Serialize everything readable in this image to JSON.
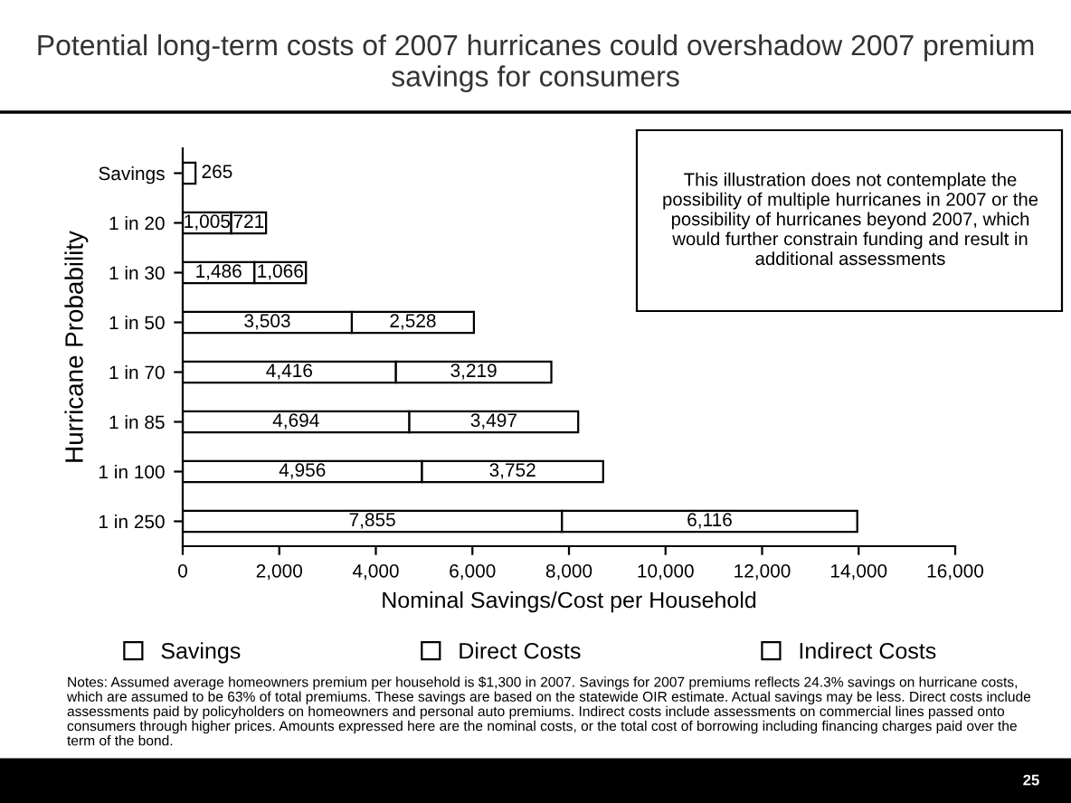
{
  "chart_data": {
    "type": "bar",
    "orientation": "horizontal",
    "stacked": true,
    "title": "Potential long-term costs of 2007 hurricanes could overshadow 2007 premium savings for consumers",
    "xlabel": "Nominal Savings/Cost per Household",
    "ylabel": "Hurricane Probability",
    "categories": [
      "Savings",
      "1 in 20",
      "1 in 30",
      "1 in 50",
      "1 in 70",
      "1 in 85",
      "1 in 100",
      "1 in 250"
    ],
    "series": [
      {
        "name": "Savings",
        "color": "#ffffff",
        "values": [
          265,
          null,
          null,
          null,
          null,
          null,
          null,
          null
        ],
        "value_labels": [
          "265",
          null,
          null,
          null,
          null,
          null,
          null,
          null
        ]
      },
      {
        "name": "Direct Costs",
        "color": "#ffffff",
        "values": [
          null,
          1005,
          1486,
          3503,
          4416,
          4694,
          4956,
          7855
        ],
        "value_labels": [
          null,
          "1,005",
          "1,486",
          "3,503",
          "4,416",
          "4,694",
          "4,956",
          "7,855"
        ]
      },
      {
        "name": "Indirect Costs",
        "color": "#ffffff",
        "values": [
          null,
          721,
          1066,
          2528,
          3219,
          3497,
          3752,
          6116
        ],
        "value_labels": [
          null,
          "721",
          "1,066",
          "2,528",
          "3,219",
          "3,497",
          "3,752",
          "6,116"
        ]
      }
    ],
    "xlim": [
      0,
      16000
    ],
    "xticks": [
      {
        "value": 0,
        "label": "0"
      },
      {
        "value": 2000,
        "label": "2,000"
      },
      {
        "value": 4000,
        "label": "4,000"
      },
      {
        "value": 6000,
        "label": "6,000"
      },
      {
        "value": 8000,
        "label": "8,000"
      },
      {
        "value": 10000,
        "label": "10,000"
      },
      {
        "value": 12000,
        "label": "12,000"
      },
      {
        "value": 14000,
        "label": "14,000"
      },
      {
        "value": 16000,
        "label": "16,000"
      }
    ],
    "legend": "bottom",
    "grid": false,
    "annotations": [
      "This illustration does not contemplate the possibility of multiple hurricanes in 2007 or the possibility of hurricanes beyond 2007, which would further constrain funding and result in additional assessments",
      "Notes: Assumed average homeowners premium per household is $1,300 in 2007. Savings for 2007 premiums reflects 24.3% savings on hurricane costs, which are assumed to be 63% of total premiums. These savings are based on the statewide OIR estimate. Actual savings may be less. Direct costs include assessments paid by policyholders on homeowners and personal auto premiums. Indirect costs include assessments on commercial lines passed onto consumers through higher prices. Amounts expressed here are the nominal costs, or the total cost of borrowing including financing charges paid over the term of the bond.",
      "25"
    ]
  }
}
